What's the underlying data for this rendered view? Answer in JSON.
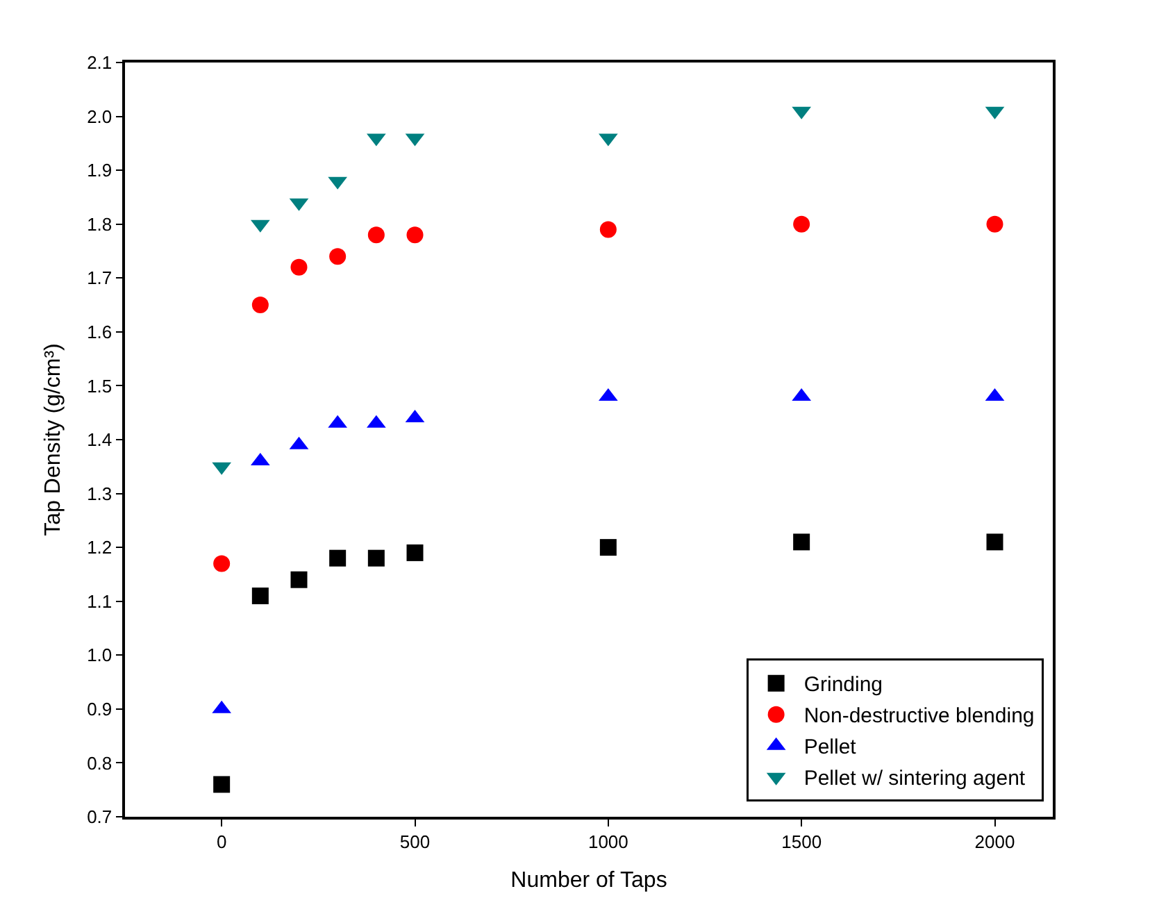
{
  "chart_data": {
    "type": "scatter",
    "xlabel": "Number of Taps",
    "ylabel": "Tap Density (g/cm³)",
    "x": [
      0,
      100,
      200,
      300,
      400,
      500,
      1000,
      1500,
      2000
    ],
    "series": [
      {
        "name": "Grinding",
        "color": "#000000",
        "marker": "square",
        "values": [
          0.76,
          1.11,
          1.14,
          1.18,
          1.18,
          1.19,
          1.2,
          1.21,
          1.21
        ]
      },
      {
        "name": "Non-destructive blending",
        "color": "#ff0000",
        "marker": "circle",
        "values": [
          1.17,
          1.65,
          1.72,
          1.74,
          1.78,
          1.78,
          1.79,
          1.8,
          1.8
        ]
      },
      {
        "name": "Pellet",
        "color": "#0000ff",
        "marker": "triangle",
        "values": [
          0.9,
          1.36,
          1.39,
          1.43,
          1.43,
          1.44,
          1.48,
          1.48,
          1.48
        ]
      },
      {
        "name": "Pellet w/ sintering agent",
        "color": "#008080",
        "marker": "triangle-down",
        "values": [
          1.35,
          1.8,
          1.84,
          1.88,
          1.96,
          1.96,
          1.96,
          2.01,
          2.01
        ]
      }
    ],
    "xlim": [
      -250,
      2150
    ],
    "xticks": [
      0,
      500,
      1000,
      1500,
      2000
    ],
    "ylim": [
      0.7,
      2.1
    ],
    "yticks": [
      {
        "value": 0.7,
        "label": "0.7"
      },
      {
        "value": 0.8,
        "label": "0.8"
      },
      {
        "value": 0.9,
        "label": "0.9"
      },
      {
        "value": 1.0,
        "label": "1.0"
      },
      {
        "value": 1.1,
        "label": "1.1"
      },
      {
        "value": 1.2,
        "label": "1.2"
      },
      {
        "value": 1.3,
        "label": "1.3"
      },
      {
        "value": 1.4,
        "label": "1.4"
      },
      {
        "value": 1.5,
        "label": "1.5"
      },
      {
        "value": 1.6,
        "label": "1.6"
      },
      {
        "value": 1.7,
        "label": "1.7"
      },
      {
        "value": 1.8,
        "label": "1.8"
      },
      {
        "value": 1.9,
        "label": "1.9"
      },
      {
        "value": 2.0,
        "label": "2.0"
      },
      {
        "value": 2.1,
        "label": "2.1"
      }
    ],
    "legend": "bottom right"
  }
}
